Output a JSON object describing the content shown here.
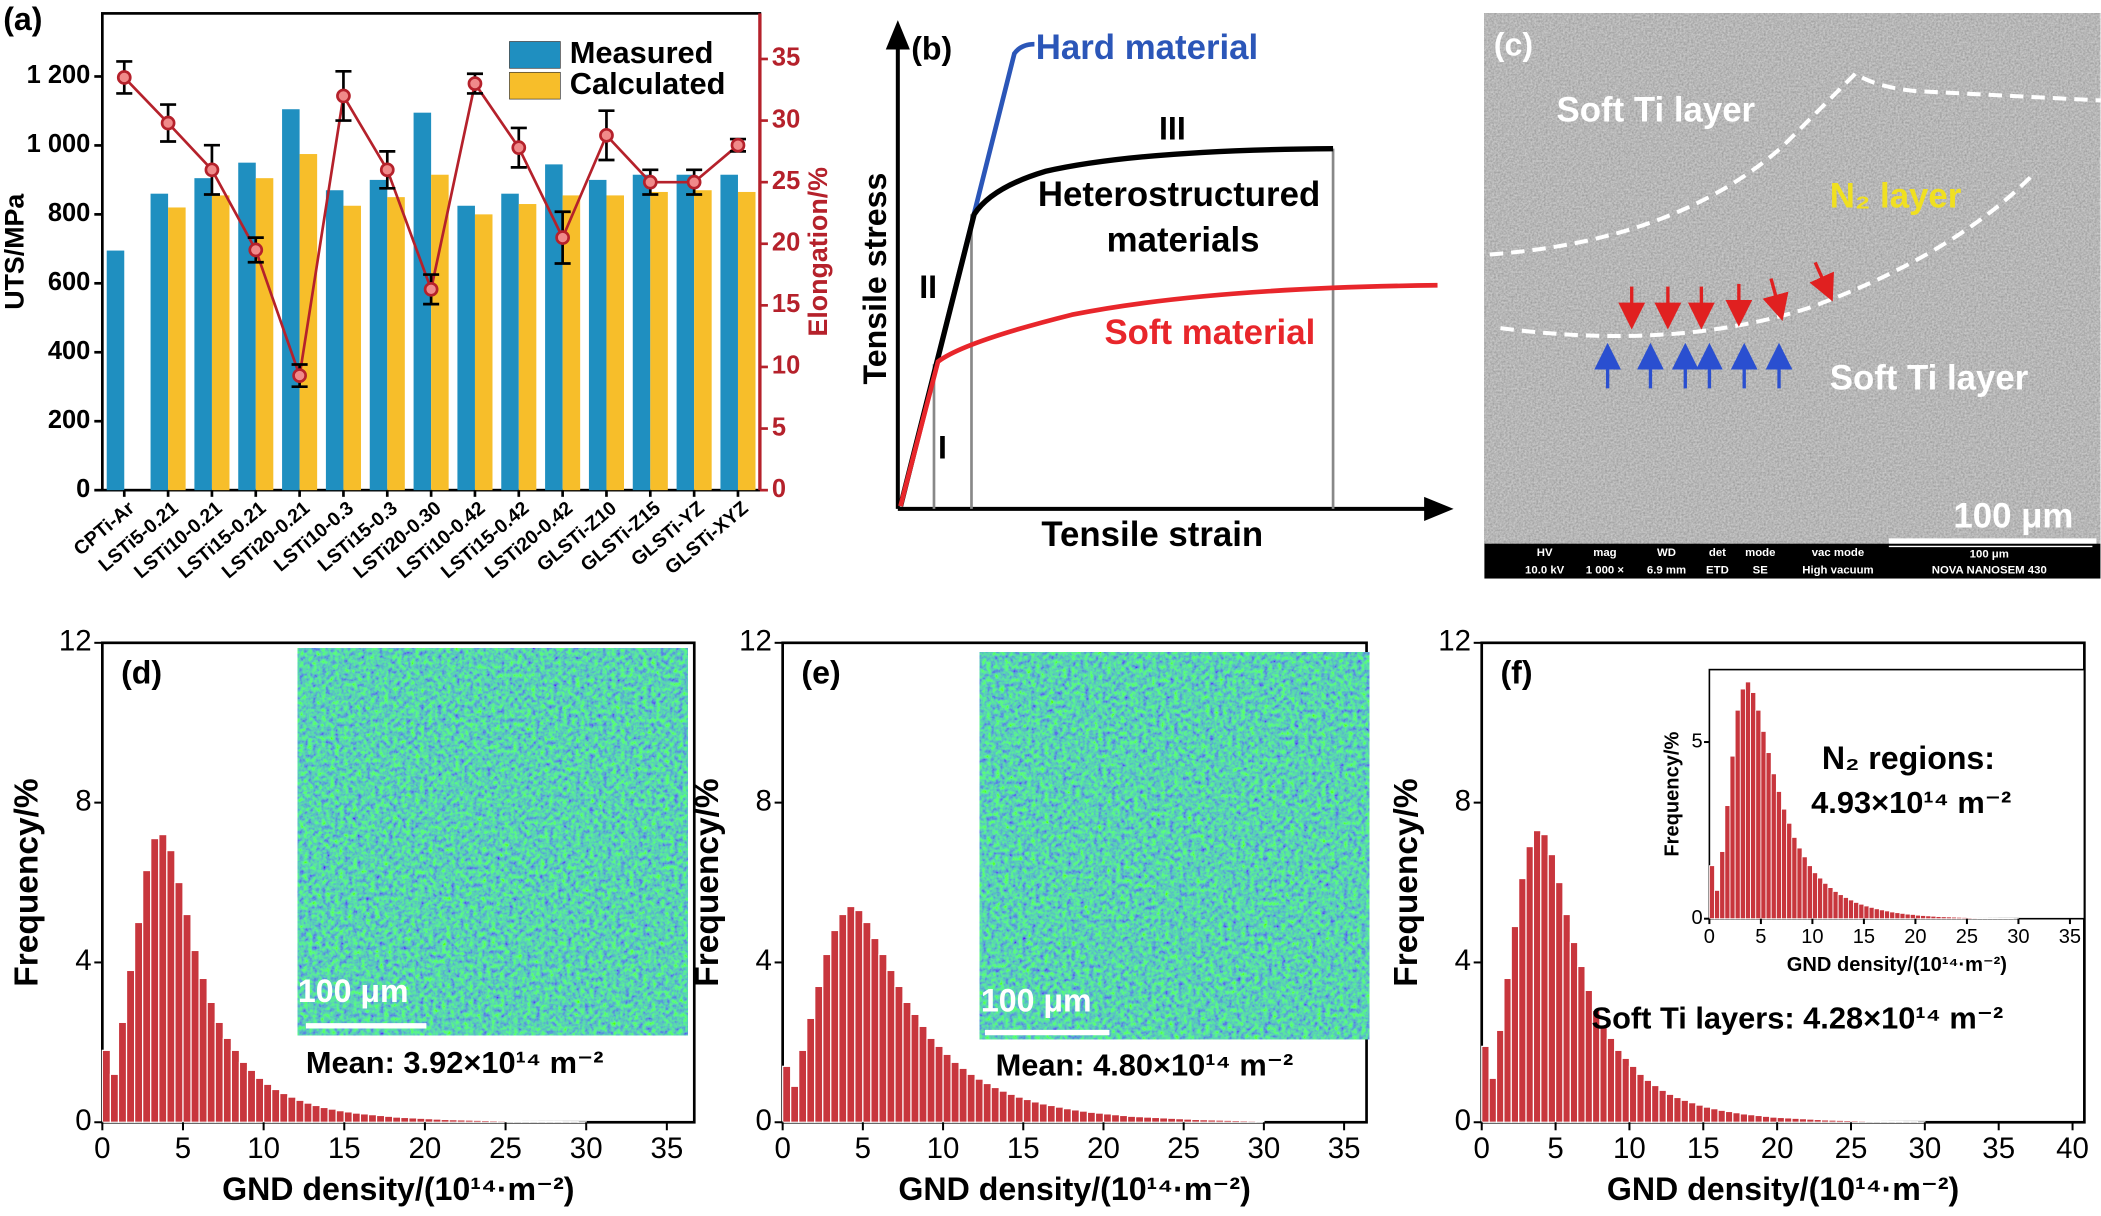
{
  "chart_data": [
    {
      "type": "bar",
      "title": "(a)",
      "y_label": "UTS/MPa",
      "y2_label": "Elongation/%",
      "categories": [
        "CPTi-Ar",
        "LSTi5-0.21",
        "LSTi10-0.21",
        "LSTi15-0.21",
        "LSTi20-0.21",
        "LSTi10-0.3",
        "LSTi15-0.3",
        "LSTi20-0.30",
        "LSTi10-0.42",
        "LSTi15-0.42",
        "LSTi20-0.42",
        "GLSTi-Z10",
        "GLSTi-Z15",
        "GLSTi-YZ",
        "GLSTi-XYZ"
      ],
      "series": [
        {
          "name": "Measured",
          "color": "#1f8fc0",
          "values": [
            695,
            860,
            905,
            950,
            1105,
            870,
            900,
            1095,
            825,
            860,
            945,
            900,
            915,
            915,
            915
          ]
        },
        {
          "name": "Calculated",
          "color": "#f7be2a",
          "values": [
            null,
            820,
            855,
            905,
            975,
            825,
            850,
            915,
            800,
            830,
            855,
            855,
            865,
            870,
            865
          ]
        },
        {
          "type": "line",
          "color": "#b5212b",
          "axis": "y2",
          "values": [
            33.5,
            29.8,
            26.0,
            19.5,
            9.3,
            32.0,
            26.0,
            16.3,
            33.0,
            27.8,
            20.5,
            28.8,
            25.0,
            25.0,
            28.0
          ],
          "errors": [
            1.3,
            1.5,
            2.0,
            1.0,
            0.9,
            2.0,
            1.5,
            1.2,
            0.8,
            1.6,
            2.1,
            2.0,
            1.0,
            1.0,
            0.5
          ]
        }
      ],
      "ylim": [
        0,
        1383
      ],
      "yticks": [
        0,
        200,
        400,
        600,
        800,
        {
          "value": 1000,
          "label": "1 000"
        },
        {
          "value": 1200,
          "label": "1 200"
        }
      ],
      "y2lim": [
        0,
        38.7
      ],
      "y2ticks": [
        0,
        5,
        10,
        15,
        20,
        25,
        30,
        35
      ],
      "legend": "upper right"
    },
    {
      "type": "histogram",
      "title": "(d)",
      "x_label": "GND density/(10¹⁴·m⁻²)",
      "y_label": "Frequency/%",
      "color": "#c8363d",
      "bins": [
        0,
        0.5,
        1,
        1.5,
        2,
        2.5,
        3,
        3.5,
        4,
        4.5,
        5,
        5.5,
        6,
        6.5,
        7,
        7.5,
        8,
        8.5,
        9,
        9.5,
        10,
        10.5,
        11,
        11.5,
        12,
        12.5,
        13,
        13.5,
        14,
        14.5,
        15,
        15.5,
        16,
        16.5,
        17,
        17.5,
        18,
        18.5,
        19,
        19.5,
        20,
        20.5,
        21,
        21.5,
        22,
        22.5,
        23,
        23.5,
        24,
        24.5,
        25,
        25.5,
        26,
        26.5,
        27,
        27.5,
        28,
        28.5,
        29,
        29.5,
        30
      ],
      "values": [
        1.8,
        1.2,
        2.5,
        3.8,
        5.0,
        6.3,
        7.1,
        7.2,
        6.8,
        6.0,
        5.2,
        4.3,
        3.6,
        3.0,
        2.5,
        2.1,
        1.8,
        1.5,
        1.3,
        1.1,
        0.95,
        0.82,
        0.72,
        0.63,
        0.55,
        0.48,
        0.42,
        0.37,
        0.33,
        0.29,
        0.26,
        0.23,
        0.21,
        0.19,
        0.17,
        0.15,
        0.13,
        0.12,
        0.11,
        0.1,
        0.09,
        0.08,
        0.07,
        0.065,
        0.06,
        0.055,
        0.05,
        0.045,
        0.04,
        0.035,
        0.03,
        0.03,
        0.025,
        0.025,
        0.02,
        0.02,
        0.02,
        0.015,
        0.015,
        0.01
      ],
      "xlim": [
        0,
        36.7
      ],
      "xticks": [
        0,
        5,
        10,
        15,
        20,
        25,
        30,
        35
      ],
      "ylim": [
        0,
        12
      ],
      "yticks": [
        0,
        4,
        8,
        12
      ],
      "annotations": [
        "100 μm",
        "Mean: 3.92×10¹⁴ m⁻²"
      ]
    },
    {
      "type": "histogram",
      "title": "(e)",
      "x_label": "GND density/(10¹⁴·m⁻²)",
      "y_label": "Frequency/%",
      "color": "#c8363d",
      "bins": [
        0,
        0.5,
        1,
        1.5,
        2,
        2.5,
        3,
        3.5,
        4,
        4.5,
        5,
        5.5,
        6,
        6.5,
        7,
        7.5,
        8,
        8.5,
        9,
        9.5,
        10,
        10.5,
        11,
        11.5,
        12,
        12.5,
        13,
        13.5,
        14,
        14.5,
        15,
        15.5,
        16,
        16.5,
        17,
        17.5,
        18,
        18.5,
        19,
        19.5,
        20,
        20.5,
        21,
        21.5,
        22,
        22.5,
        23,
        23.5,
        24,
        24.5,
        25,
        25.5,
        26,
        26.5,
        27,
        27.5,
        28,
        28.5,
        29,
        29.5,
        30
      ],
      "values": [
        1.4,
        0.9,
        1.8,
        2.6,
        3.4,
        4.2,
        4.8,
        5.2,
        5.4,
        5.3,
        5.0,
        4.6,
        4.2,
        3.8,
        3.4,
        3.0,
        2.7,
        2.4,
        2.1,
        1.9,
        1.7,
        1.5,
        1.35,
        1.2,
        1.08,
        0.97,
        0.87,
        0.78,
        0.7,
        0.63,
        0.57,
        0.51,
        0.46,
        0.42,
        0.38,
        0.34,
        0.31,
        0.28,
        0.25,
        0.23,
        0.21,
        0.19,
        0.17,
        0.15,
        0.14,
        0.13,
        0.12,
        0.11,
        0.1,
        0.09,
        0.08,
        0.07,
        0.065,
        0.06,
        0.055,
        0.05,
        0.045,
        0.04,
        0.035,
        0.03
      ],
      "xlim": [
        0,
        36.4
      ],
      "xticks": [
        0,
        5,
        10,
        15,
        20,
        25,
        30,
        35
      ],
      "ylim": [
        0,
        12
      ],
      "yticks": [
        0,
        4,
        8,
        12
      ],
      "annotations": [
        "100 μm",
        "Mean: 4.80×10¹⁴ m⁻²"
      ]
    },
    {
      "type": "histogram",
      "title": "(f)",
      "x_label": "GND density/(10¹⁴·m⁻²)",
      "y_label": "Frequency/%",
      "color": "#c8363d",
      "bins": [
        0,
        0.5,
        1,
        1.5,
        2,
        2.5,
        3,
        3.5,
        4,
        4.5,
        5,
        5.5,
        6,
        6.5,
        7,
        7.5,
        8,
        8.5,
        9,
        9.5,
        10,
        10.5,
        11,
        11.5,
        12,
        12.5,
        13,
        13.5,
        14,
        14.5,
        15,
        15.5,
        16,
        16.5,
        17,
        17.5,
        18,
        18.5,
        19,
        19.5,
        20,
        20.5,
        21,
        21.5,
        22,
        22.5,
        23,
        23.5,
        24,
        24.5,
        25,
        25.5,
        26,
        26.5,
        27,
        27.5,
        28,
        28.5,
        29,
        29.5,
        30
      ],
      "values": [
        1.9,
        1.1,
        2.3,
        3.6,
        4.9,
        6.1,
        6.9,
        7.3,
        7.2,
        6.7,
        6.0,
        5.2,
        4.5,
        3.9,
        3.3,
        2.8,
        2.4,
        2.1,
        1.8,
        1.6,
        1.4,
        1.2,
        1.05,
        0.92,
        0.8,
        0.7,
        0.62,
        0.55,
        0.49,
        0.43,
        0.38,
        0.34,
        0.3,
        0.27,
        0.24,
        0.21,
        0.19,
        0.17,
        0.15,
        0.13,
        0.12,
        0.11,
        0.1,
        0.09,
        0.08,
        0.07,
        0.06,
        0.055,
        0.05,
        0.045,
        0.04,
        0.035,
        0.03,
        0.03,
        0.025,
        0.02,
        0.02,
        0.015,
        0.015,
        0.01
      ],
      "xlim": [
        0,
        40.8
      ],
      "xticks": [
        0,
        5,
        10,
        15,
        20,
        25,
        30,
        35,
        40
      ],
      "ylim": [
        0,
        12
      ],
      "yticks": [
        0,
        4,
        8,
        12
      ],
      "annotations": [
        "Soft Ti layers: 4.28×10¹⁴ m⁻²"
      ]
    },
    {
      "type": "histogram",
      "x_label": "GND density/(10¹⁴·m⁻²)",
      "y_label": "Frequency/%",
      "color": "#c8363d",
      "bins": [
        0,
        0.5,
        1,
        1.5,
        2,
        2.5,
        3,
        3.5,
        4,
        4.5,
        5,
        5.5,
        6,
        6.5,
        7,
        7.5,
        8,
        8.5,
        9,
        9.5,
        10,
        10.5,
        11,
        11.5,
        12,
        12.5,
        13,
        13.5,
        14,
        14.5,
        15,
        15.5,
        16,
        16.5,
        17,
        17.5,
        18,
        18.5,
        19,
        19.5,
        20,
        20.5,
        21,
        21.5,
        22,
        22.5,
        23,
        23.5,
        24,
        24.5,
        25,
        25.5,
        26,
        26.5,
        27,
        27.5,
        28,
        28.5,
        29,
        29.5,
        30
      ],
      "values": [
        1.5,
        0.8,
        1.9,
        3.2,
        4.6,
        5.9,
        6.5,
        6.7,
        6.4,
        5.9,
        5.3,
        4.7,
        4.1,
        3.6,
        3.1,
        2.7,
        2.3,
        2.0,
        1.75,
        1.5,
        1.3,
        1.15,
        1.0,
        0.88,
        0.77,
        0.68,
        0.6,
        0.53,
        0.46,
        0.41,
        0.36,
        0.32,
        0.28,
        0.25,
        0.22,
        0.19,
        0.17,
        0.15,
        0.13,
        0.12,
        0.1,
        0.09,
        0.08,
        0.07,
        0.06,
        0.055,
        0.05,
        0.045,
        0.04,
        0.035,
        0.03,
        0.025,
        0.02,
        0.02,
        0.015,
        0.015,
        0.01,
        0.01,
        0.01,
        0.005
      ],
      "xlim": [
        0,
        36.4
      ],
      "xticks": [
        0,
        5,
        10,
        15,
        20,
        25,
        30,
        35
      ],
      "ylim": [
        0,
        7.05
      ],
      "yticks": [
        0,
        5
      ],
      "annotations": [
        "N₂ regions:",
        "4.93×10¹⁴ m⁻²"
      ]
    }
  ],
  "schematic": {
    "panel_label": "(b)",
    "x_label": "Tensile strain",
    "y_label": "Tensile stress",
    "labels": [
      "Hard material",
      "III",
      "Heterostructured",
      "materials",
      "Soft material",
      "II",
      "I"
    ]
  },
  "micrograph": {
    "panel_label": "(c)",
    "labels": [
      "Soft Ti layer",
      "N₂ layer",
      "Soft Ti layer"
    ],
    "scale_bar": "100 μm",
    "info_bar": [
      {
        "header": "HV",
        "value": "10.0 kV"
      },
      {
        "header": "mag",
        "value": "1 000 ×"
      },
      {
        "header": "WD",
        "value": "6.9 mm"
      },
      {
        "header": "det",
        "value": "ETD"
      },
      {
        "header": "mode",
        "value": "SE"
      },
      {
        "header": "vac mode",
        "value": "High vacuum"
      }
    ],
    "bar_label": "100 μm",
    "instrument": "NOVA NANOSEM 430"
  }
}
